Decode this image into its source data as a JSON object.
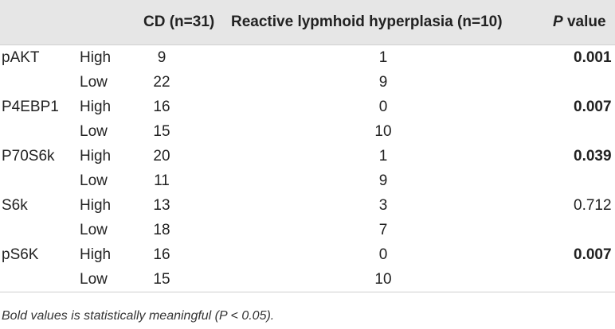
{
  "table": {
    "headers": {
      "marker": "",
      "level": "",
      "cd": "CD (n=31)",
      "rlh": "Reactive lypmhoid hyperplasia (n=10)",
      "p_prefix": "P",
      "p_suffix": " value"
    },
    "rows": [
      {
        "marker": "pAKT",
        "level": "High",
        "cd": "9",
        "rlh": "1",
        "p": "0.001",
        "bold": true
      },
      {
        "marker": "",
        "level": "Low",
        "cd": "22",
        "rlh": "9",
        "p": "",
        "bold": false
      },
      {
        "marker": "P4EBP1",
        "level": "High",
        "cd": "16",
        "rlh": "0",
        "p": "0.007",
        "bold": true
      },
      {
        "marker": "",
        "level": "Low",
        "cd": "15",
        "rlh": "10",
        "p": "",
        "bold": false
      },
      {
        "marker": "P70S6k",
        "level": "High",
        "cd": "20",
        "rlh": "1",
        "p": "0.039",
        "bold": true
      },
      {
        "marker": "",
        "level": "Low",
        "cd": "11",
        "rlh": "9",
        "p": "",
        "bold": false
      },
      {
        "marker": "S6k",
        "level": "High",
        "cd": "13",
        "rlh": "3",
        "p": "0.712",
        "bold": false
      },
      {
        "marker": "",
        "level": "Low",
        "cd": "18",
        "rlh": "7",
        "p": "",
        "bold": false
      },
      {
        "marker": "pS6K",
        "level": "High",
        "cd": "16",
        "rlh": "0",
        "p": "0.007",
        "bold": true
      },
      {
        "marker": "",
        "level": "Low",
        "cd": "15",
        "rlh": "10",
        "p": "",
        "bold": false
      }
    ]
  },
  "footnote": "Bold values is statistically meaningful (P < 0.05)."
}
